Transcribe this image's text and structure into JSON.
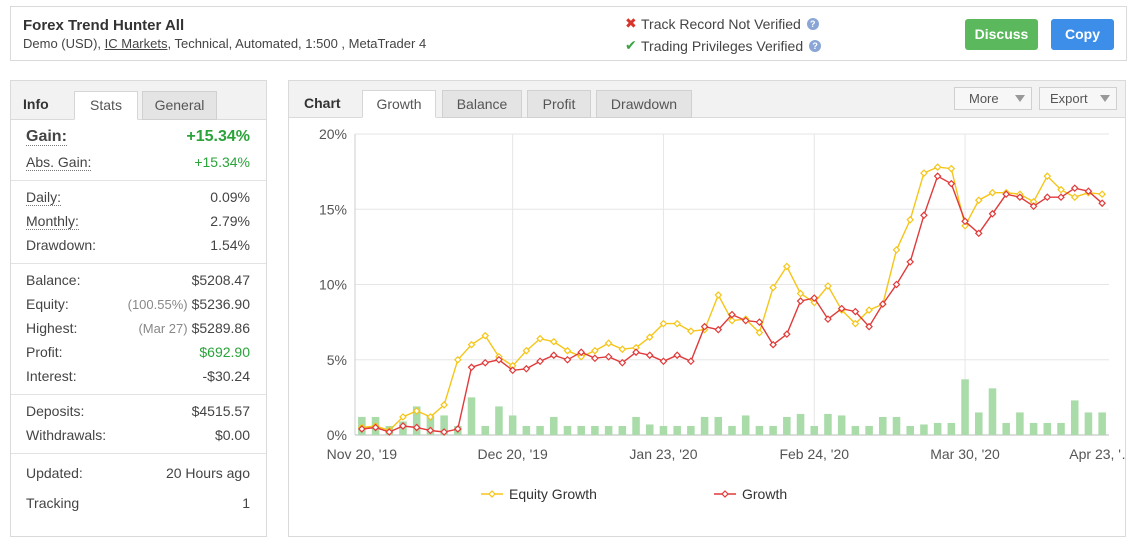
{
  "header": {
    "system_name": "Forex Trend Hunter All",
    "sub_account": "Demo (USD),",
    "sub_broker": "IC Markets",
    "sub_rest": ", Technical, Automated, 1:500 , MetaTrader 4",
    "track_record": "Track Record Not Verified",
    "trading_privileges": "Trading Privileges Verified",
    "help_glyph": "?",
    "discuss_label": "Discuss",
    "copy_label": "Copy",
    "icons": {
      "not_verified": "x-icon",
      "verified": "check-icon",
      "help": "help-icon"
    },
    "colors": {
      "discuss": "#5cb85c",
      "copy": "#3d8ee8",
      "not_verified": "#d9342b",
      "verified": "#3aa343"
    }
  },
  "left_panel": {
    "tabs": {
      "info": "Info",
      "stats": "Stats",
      "general": "General"
    },
    "gain": {
      "label": "Gain:",
      "value": "+15.34%"
    },
    "abs_gain": {
      "label": "Abs. Gain:",
      "value": "+15.34%"
    },
    "daily": {
      "label": "Daily:",
      "value": "0.09%"
    },
    "monthly": {
      "label": "Monthly:",
      "value": "2.79%"
    },
    "drawdown": {
      "label": "Drawdown:",
      "value": "1.54%"
    },
    "balance": {
      "label": "Balance:",
      "value": "$5208.47"
    },
    "equity": {
      "label": "Equity:",
      "pre": "(100.55%)",
      "value": "$5236.90"
    },
    "highest": {
      "label": "Highest:",
      "pre": "(Mar 27)",
      "value": "$5289.86"
    },
    "profit": {
      "label": "Profit:",
      "value": "$692.90"
    },
    "interest": {
      "label": "Interest:",
      "value": "-$30.24"
    },
    "deposits": {
      "label": "Deposits:",
      "value": "$4515.57"
    },
    "withdrawals": {
      "label": "Withdrawals:",
      "value": "$0.00"
    },
    "updated": {
      "label": "Updated:",
      "value": "20 Hours ago"
    },
    "tracking": {
      "label": "Tracking",
      "value": "1"
    }
  },
  "chart_panel": {
    "tabs": {
      "title": "Chart",
      "growth": "Growth",
      "balance": "Balance",
      "profit": "Profit",
      "drawdown": "Drawdown"
    },
    "more_label": "More",
    "export_label": "Export"
  },
  "chart_data": {
    "type": "line",
    "title": "",
    "xlabel": "",
    "ylabel": "",
    "ylim": [
      0,
      20
    ],
    "y_ticks": [
      "0%",
      "5%",
      "10%",
      "15%",
      "20%"
    ],
    "x_tick_labels": [
      "Nov 20, '19",
      "Dec 20, '19",
      "Jan 23, '20",
      "Feb 24, '20",
      "Mar 30, '20",
      "Apr 23, '…"
    ],
    "x_tick_index": [
      0,
      11,
      22,
      33,
      44,
      54
    ],
    "grid": true,
    "legend_position": "bottom",
    "series": [
      {
        "name": "Equity Growth",
        "color": "#f5c518",
        "values": [
          0.5,
          0.6,
          0.3,
          1.2,
          1.6,
          1.2,
          2.0,
          5.0,
          6.0,
          6.6,
          5.2,
          4.6,
          5.6,
          6.4,
          6.2,
          5.6,
          5.2,
          5.6,
          6.1,
          5.7,
          5.8,
          6.5,
          7.4,
          7.4,
          6.9,
          7.0,
          9.3,
          7.6,
          7.7,
          6.8,
          9.8,
          11.2,
          9.4,
          8.8,
          9.9,
          8.3,
          7.4,
          8.3,
          8.7,
          12.3,
          14.3,
          17.4,
          17.8,
          17.7,
          13.9,
          15.6,
          16.1,
          16.1,
          16.0,
          15.5,
          17.2,
          16.3,
          15.8,
          16.1,
          16.0
        ]
      },
      {
        "name": "Growth",
        "color": "#e03a3a",
        "values": [
          0.4,
          0.5,
          0.2,
          0.6,
          0.5,
          0.3,
          0.2,
          0.4,
          4.5,
          4.8,
          5.0,
          4.3,
          4.4,
          4.9,
          5.3,
          5.0,
          5.5,
          5.1,
          5.2,
          4.8,
          5.5,
          5.3,
          4.9,
          5.3,
          4.9,
          7.2,
          7.0,
          8.0,
          7.6,
          7.5,
          6.0,
          6.7,
          8.9,
          9.1,
          7.7,
          8.4,
          8.2,
          7.2,
          8.7,
          10.0,
          11.5,
          14.6,
          17.2,
          16.7,
          14.2,
          13.4,
          14.7,
          16.0,
          15.8,
          15.2,
          15.8,
          15.8,
          16.4,
          16.2,
          15.4
        ]
      }
    ],
    "bar_series": {
      "color": "#a9dca9",
      "values": [
        1.2,
        1.2,
        0.6,
        0.9,
        1.9,
        1.3,
        1.3,
        0.6,
        2.5,
        0.6,
        1.9,
        1.3,
        0.6,
        0.6,
        1.2,
        0.6,
        0.6,
        0.6,
        0.6,
        0.6,
        1.2,
        0.7,
        0.6,
        0.6,
        0.6,
        1.2,
        1.2,
        0.6,
        1.3,
        0.6,
        0.6,
        1.2,
        1.4,
        0.6,
        1.4,
        1.3,
        0.6,
        0.6,
        1.2,
        1.2,
        0.6,
        0.7,
        0.8,
        0.8,
        3.7,
        1.5,
        3.1,
        0.8,
        1.5,
        0.8,
        0.8,
        0.8,
        2.3,
        1.5,
        1.5
      ]
    }
  }
}
